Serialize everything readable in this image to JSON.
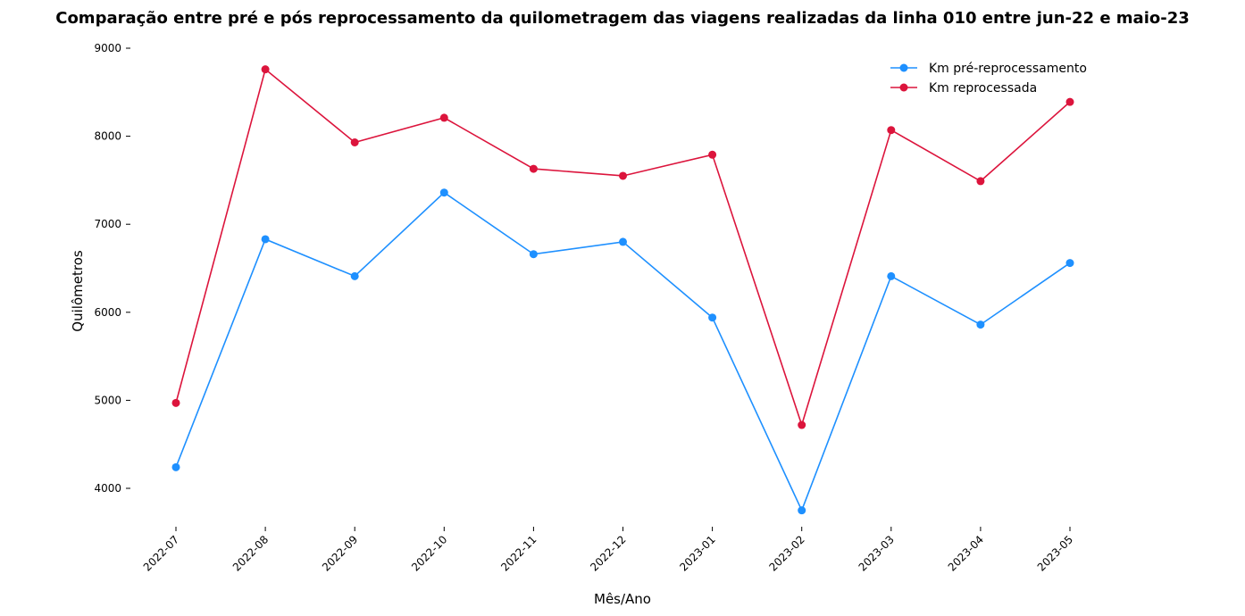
{
  "chart_data": {
    "type": "line",
    "title": "Comparação entre pré e pós reprocessamento da quilometragem das viagens realizadas da linha 010 entre jun-22 e maio-23",
    "xlabel": "Mês/Ano",
    "ylabel": "Quilômetros",
    "categories": [
      "2022-07",
      "2022-08",
      "2022-09",
      "2022-10",
      "2022-11",
      "2022-12",
      "2023-01",
      "2023-02",
      "2023-03",
      "2023-04",
      "2023-05"
    ],
    "yticks": [
      4000,
      5000,
      6000,
      7000,
      8000,
      9000
    ],
    "ylim": [
      3500,
      9000
    ],
    "grid": false,
    "legend_position": "top-right",
    "series": [
      {
        "name": "Km pré-reprocessamento",
        "color": "#1e90ff",
        "values": [
          4240,
          6830,
          6410,
          7360,
          6660,
          6800,
          5940,
          3750,
          6410,
          5860,
          6560
        ]
      },
      {
        "name": "Km reprocessada",
        "color": "#dc143c",
        "values": [
          4970,
          8760,
          7930,
          8210,
          7630,
          7550,
          7790,
          4720,
          8070,
          7490,
          8390
        ]
      }
    ]
  }
}
